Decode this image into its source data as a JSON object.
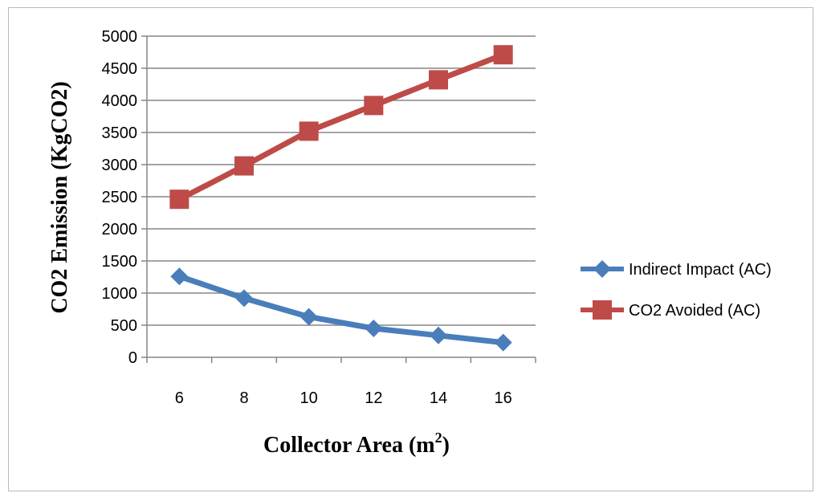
{
  "chart_data": {
    "type": "line",
    "title": "",
    "xlabel": "Collector Area (m",
    "xlabel_sup": "2",
    "xlabel_suffix": ")",
    "ylabel": "CO2 Emission (KgCO2)",
    "categories": [
      "6",
      "8",
      "10",
      "12",
      "14",
      "16"
    ],
    "x": [
      6,
      8,
      10,
      12,
      14,
      16
    ],
    "ylim": [
      0,
      5000
    ],
    "yticks": [
      0,
      500,
      1000,
      1500,
      2000,
      2500,
      3000,
      3500,
      4000,
      4500,
      5000
    ],
    "grid": true,
    "legend_position": "right",
    "series": [
      {
        "name": "Indirect Impact (AC)",
        "values": [
          1260,
          920,
          630,
          450,
          340,
          230
        ],
        "color": "#4a7ebb",
        "marker": "diamond"
      },
      {
        "name": "CO2 Avoided (AC)",
        "values": [
          2460,
          2980,
          3520,
          3920,
          4320,
          4710
        ],
        "color": "#be4b48",
        "marker": "square"
      }
    ]
  }
}
